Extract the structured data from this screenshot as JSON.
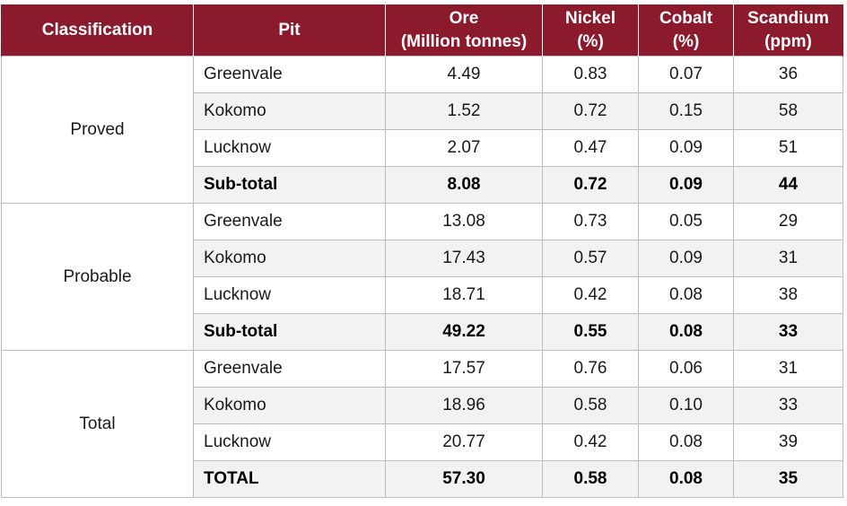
{
  "table": {
    "headers": {
      "classification": "Classification",
      "pit": "Pit",
      "ore_line1": "Ore",
      "ore_line2": "(Million tonnes)",
      "nickel_line1": "Nickel",
      "nickel_line2": "(%)",
      "cobalt_line1": "Cobalt",
      "cobalt_line2": "(%)",
      "scandium_line1": "Scandium",
      "scandium_line2": "(ppm)"
    },
    "groups": [
      {
        "classification": "Proved",
        "rows": [
          {
            "pit": "Greenvale",
            "ore": "4.49",
            "nickel": "0.83",
            "cobalt": "0.07",
            "scandium": "36"
          },
          {
            "pit": "Kokomo",
            "ore": "1.52",
            "nickel": "0.72",
            "cobalt": "0.15",
            "scandium": "58"
          },
          {
            "pit": "Lucknow",
            "ore": "2.07",
            "nickel": "0.47",
            "cobalt": "0.09",
            "scandium": "51"
          },
          {
            "pit": "Sub-total",
            "ore": "8.08",
            "nickel": "0.72",
            "cobalt": "0.09",
            "scandium": "44"
          }
        ]
      },
      {
        "classification": "Probable",
        "rows": [
          {
            "pit": "Greenvale",
            "ore": "13.08",
            "nickel": "0.73",
            "cobalt": "0.05",
            "scandium": "29"
          },
          {
            "pit": "Kokomo",
            "ore": "17.43",
            "nickel": "0.57",
            "cobalt": "0.09",
            "scandium": "31"
          },
          {
            "pit": "Lucknow",
            "ore": "18.71",
            "nickel": "0.42",
            "cobalt": "0.08",
            "scandium": "38"
          },
          {
            "pit": "Sub-total",
            "ore": "49.22",
            "nickel": "0.55",
            "cobalt": "0.08",
            "scandium": "33"
          }
        ]
      },
      {
        "classification": "Total",
        "rows": [
          {
            "pit": "Greenvale",
            "ore": "17.57",
            "nickel": "0.76",
            "cobalt": "0.06",
            "scandium": "31"
          },
          {
            "pit": "Kokomo",
            "ore": "18.96",
            "nickel": "0.58",
            "cobalt": "0.10",
            "scandium": "33"
          },
          {
            "pit": "Lucknow",
            "ore": "20.77",
            "nickel": "0.42",
            "cobalt": "0.08",
            "scandium": "39"
          },
          {
            "pit": "TOTAL",
            "ore": "57.30",
            "nickel": "0.58",
            "cobalt": "0.08",
            "scandium": "35"
          }
        ]
      }
    ]
  },
  "colors": {
    "header_bg": "#8b1a2c",
    "header_text": "#ffffff",
    "row_shade": "#f2f2f2",
    "border": "#bdbdbd"
  }
}
